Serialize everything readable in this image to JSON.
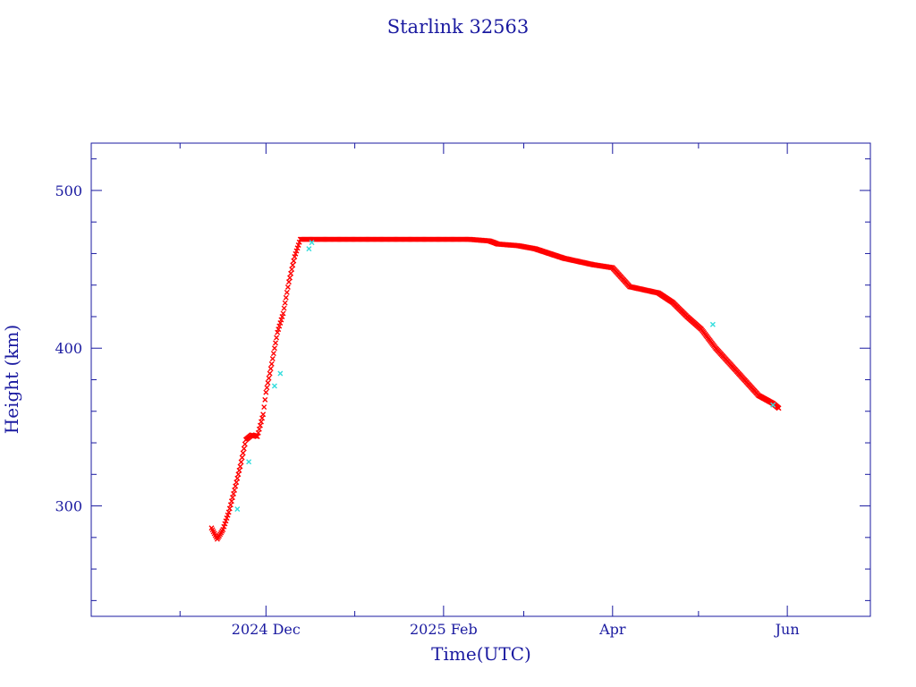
{
  "chart_data": {
    "type": "scatter",
    "title": "Starlink 32563",
    "xlabel": "Time(UTC)",
    "ylabel": "Height (km)",
    "x_type": "date",
    "xlim": [
      "2024-10-01",
      "2025-06-30"
    ],
    "ylim": [
      230,
      530
    ],
    "x_ticks": [
      {
        "date": "2024-12-01",
        "label": "2024 Dec"
      },
      {
        "date": "2025-02-01",
        "label": "2025 Feb"
      },
      {
        "date": "2025-04-01",
        "label": "Apr"
      },
      {
        "date": "2025-06-01",
        "label": "Jun"
      }
    ],
    "y_ticks": [
      {
        "value": 300,
        "label": "300"
      },
      {
        "value": 400,
        "label": "400"
      },
      {
        "value": 500,
        "label": "500"
      }
    ],
    "grid": false,
    "series": [
      {
        "color": "#ff0000",
        "marker": "x",
        "x": [
          "2024-11-12",
          "2024-11-14",
          "2024-11-16",
          "2024-11-18",
          "2024-11-20",
          "2024-11-22",
          "2024-11-24",
          "2024-11-26",
          "2024-11-28",
          "2024-11-30",
          "2024-12-01",
          "2024-12-03",
          "2024-12-05",
          "2024-12-07",
          "2024-12-09",
          "2024-12-11",
          "2024-12-13",
          "2024-12-15",
          "2024-12-17",
          "2024-12-19",
          "2024-12-21",
          "2024-12-25",
          "2024-12-31",
          "2025-01-10",
          "2025-01-20",
          "2025-01-30",
          "2025-02-05",
          "2025-02-10",
          "2025-02-17",
          "2025-02-20",
          "2025-02-27",
          "2025-03-05",
          "2025-03-10",
          "2025-03-15",
          "2025-03-20",
          "2025-03-25",
          "2025-04-01",
          "2025-04-04",
          "2025-04-07",
          "2025-04-12",
          "2025-04-17",
          "2025-04-22",
          "2025-04-27",
          "2025-05-02",
          "2025-05-07",
          "2025-05-12",
          "2025-05-17",
          "2025-05-22",
          "2025-05-27",
          "2025-05-29"
        ],
        "y": [
          286,
          279,
          285,
          296,
          310,
          325,
          342,
          345,
          344,
          358,
          372,
          390,
          410,
          422,
          442,
          458,
          469,
          469,
          469,
          469,
          469,
          469,
          469,
          469,
          469,
          469,
          469,
          469,
          468,
          466,
          465,
          463,
          460,
          457,
          455,
          453,
          451,
          445,
          439,
          437,
          435,
          429,
          420,
          412,
          400,
          390,
          380,
          370,
          365,
          362
        ]
      },
      {
        "color": "#33dddd",
        "marker": "x",
        "x": [
          "2024-11-21",
          "2024-11-25",
          "2024-12-04",
          "2024-12-06",
          "2024-12-16",
          "2024-12-17",
          "2025-05-06",
          "2025-05-27"
        ],
        "y": [
          298,
          328,
          376,
          384,
          463,
          467,
          415,
          364
        ]
      }
    ]
  }
}
